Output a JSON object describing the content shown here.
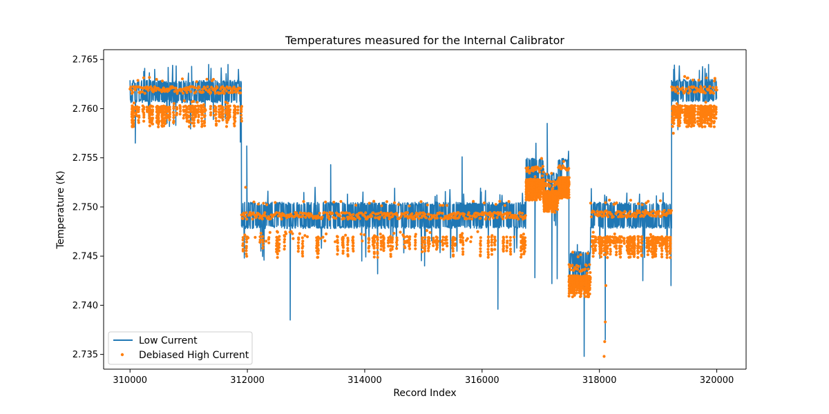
{
  "chart_data": {
    "type": "line",
    "title": "Temperatures measured for the Internal Calibrator",
    "xlabel": "Record Index",
    "ylabel": "Temperature (K)",
    "xlim": [
      309550,
      320500
    ],
    "ylim": [
      2.7335,
      2.766
    ],
    "x_ticks": [
      {
        "value": 310000,
        "label": "310000"
      },
      {
        "value": 312000,
        "label": "312000"
      },
      {
        "value": 314000,
        "label": "314000"
      },
      {
        "value": 316000,
        "label": "316000"
      },
      {
        "value": 318000,
        "label": "318000"
      },
      {
        "value": 320000,
        "label": "320000"
      }
    ],
    "y_ticks": [
      {
        "value": 2.735,
        "label": "2.735"
      },
      {
        "value": 2.74,
        "label": "2.740"
      },
      {
        "value": 2.745,
        "label": "2.745"
      },
      {
        "value": 2.75,
        "label": "2.750"
      },
      {
        "value": 2.755,
        "label": "2.755"
      },
      {
        "value": 2.76,
        "label": "2.760"
      },
      {
        "value": 2.765,
        "label": "2.765"
      }
    ],
    "grid": false,
    "legend_position": "lower-left",
    "series": [
      {
        "name": "Low Current",
        "style": "line",
        "color": "#1f77b4",
        "segments": [
          {
            "x_start": 310000,
            "x_end": 311900,
            "base": 2.7617,
            "upper_band": 2.7629,
            "lower_band": 2.7606
          },
          {
            "x_start": 311900,
            "x_end": 316750,
            "base": 2.7492,
            "upper_band": 2.7505,
            "lower_band": 2.7478
          },
          {
            "x_start": 316750,
            "x_end": 317050,
            "base": 2.7535,
            "upper_band": 2.755,
            "lower_band": 2.7518
          },
          {
            "x_start": 317050,
            "x_end": 317300,
            "base": 2.7524,
            "upper_band": 2.7535,
            "lower_band": 2.7512
          },
          {
            "x_start": 317300,
            "x_end": 317480,
            "base": 2.7538,
            "upper_band": 2.755,
            "lower_band": 2.7524
          },
          {
            "x_start": 317480,
            "x_end": 317850,
            "base": 2.7438,
            "upper_band": 2.7455,
            "lower_band": 2.7424
          },
          {
            "x_start": 317850,
            "x_end": 319230,
            "base": 2.7492,
            "upper_band": 2.7505,
            "lower_band": 2.7478
          },
          {
            "x_start": 319230,
            "x_end": 320000,
            "base": 2.7619,
            "upper_band": 2.763,
            "lower_band": 2.7607
          }
        ],
        "spikes": [
          {
            "x": 310090,
            "y": 2.7565
          },
          {
            "x": 310250,
            "y": 2.7641
          },
          {
            "x": 310420,
            "y": 2.764
          },
          {
            "x": 310650,
            "y": 2.7642
          },
          {
            "x": 310780,
            "y": 2.7583
          },
          {
            "x": 311050,
            "y": 2.7643
          },
          {
            "x": 311340,
            "y": 2.7645
          },
          {
            "x": 311420,
            "y": 2.7589
          },
          {
            "x": 311670,
            "y": 2.7645
          },
          {
            "x": 311880,
            "y": 2.7566
          },
          {
            "x": 311990,
            "y": 2.7562
          },
          {
            "x": 312730,
            "y": 2.7385
          },
          {
            "x": 313420,
            "y": 2.7543
          },
          {
            "x": 313950,
            "y": 2.7445
          },
          {
            "x": 314220,
            "y": 2.7432
          },
          {
            "x": 315020,
            "y": 2.744
          },
          {
            "x": 315660,
            "y": 2.7551
          },
          {
            "x": 316270,
            "y": 2.7396
          },
          {
            "x": 316900,
            "y": 2.7428
          },
          {
            "x": 317110,
            "y": 2.7585
          },
          {
            "x": 317190,
            "y": 2.7422
          },
          {
            "x": 317280,
            "y": 2.7427
          },
          {
            "x": 317740,
            "y": 2.7348
          },
          {
            "x": 318100,
            "y": 2.7365
          },
          {
            "x": 318740,
            "y": 2.7425
          },
          {
            "x": 319220,
            "y": 2.742
          },
          {
            "x": 319860,
            "y": 2.7645
          }
        ]
      },
      {
        "name": "Debiased High Current",
        "style": "scatter",
        "color": "#ff7f0e",
        "segments": [
          {
            "x_start": 310000,
            "x_end": 311900,
            "base": 2.7619,
            "upper_band": 2.7627,
            "lower_band": 2.7603
          },
          {
            "x_start": 311900,
            "x_end": 316750,
            "base": 2.7491,
            "upper_band": 2.7501,
            "lower_band": 2.747
          },
          {
            "x_start": 316750,
            "x_end": 317050,
            "base": 2.7538,
            "upper_band": 2.7545,
            "lower_band": 2.7528
          },
          {
            "x_start": 317050,
            "x_end": 317300,
            "base": 2.7524,
            "upper_band": 2.7531,
            "lower_band": 2.7516
          },
          {
            "x_start": 317300,
            "x_end": 317480,
            "base": 2.7539,
            "upper_band": 2.7545,
            "lower_band": 2.753
          },
          {
            "x_start": 317480,
            "x_end": 317850,
            "base": 2.7438,
            "upper_band": 2.7449,
            "lower_band": 2.743
          },
          {
            "x_start": 317850,
            "x_end": 319230,
            "base": 2.7493,
            "upper_band": 2.7502,
            "lower_band": 2.747
          },
          {
            "x_start": 319230,
            "x_end": 320000,
            "base": 2.7619,
            "upper_band": 2.7628,
            "lower_band": 2.7603
          }
        ],
        "spikes": [
          {
            "x": 311970,
            "y": 2.752
          },
          {
            "x": 318080,
            "y": 2.7348
          },
          {
            "x": 318090,
            "y": 2.7363
          },
          {
            "x": 318100,
            "y": 2.7383
          },
          {
            "x": 318110,
            "y": 2.742
          },
          {
            "x": 319260,
            "y": 2.7575
          }
        ]
      }
    ]
  }
}
